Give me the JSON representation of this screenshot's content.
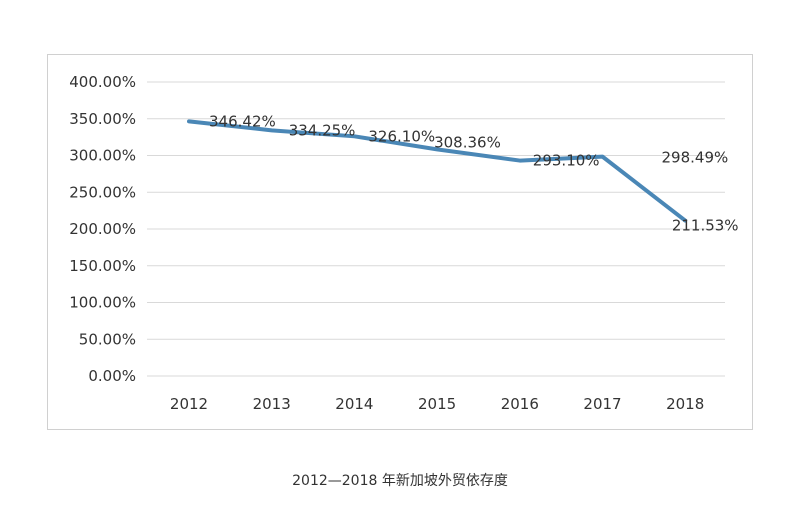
{
  "caption": "2012—2018 年新加坡外贸依存度",
  "chart_data": {
    "type": "line",
    "categories": [
      "2012",
      "2013",
      "2014",
      "2015",
      "2016",
      "2017",
      "2018"
    ],
    "series": [
      {
        "values": [
          346.42,
          334.25,
          326.1,
          308.36,
          293.1,
          298.49,
          211.53
        ],
        "labels": [
          "346.42%",
          "334.25%",
          "326.10%",
          "308.36%",
          "293.10%",
          "298.49%",
          "211.53%"
        ],
        "color": "#4a87b6"
      }
    ],
    "ylim": [
      0,
      400
    ],
    "yticks": [
      0,
      50,
      100,
      150,
      200,
      250,
      300,
      350,
      400
    ],
    "ytick_labels": [
      "0.00%",
      "50.00%",
      "100.00%",
      "150.00%",
      "200.00%",
      "250.00%",
      "300.00%",
      "350.00%",
      "400.00%"
    ],
    "grid": true,
    "gridline_color": "#d9d9d9",
    "legend": false
  }
}
